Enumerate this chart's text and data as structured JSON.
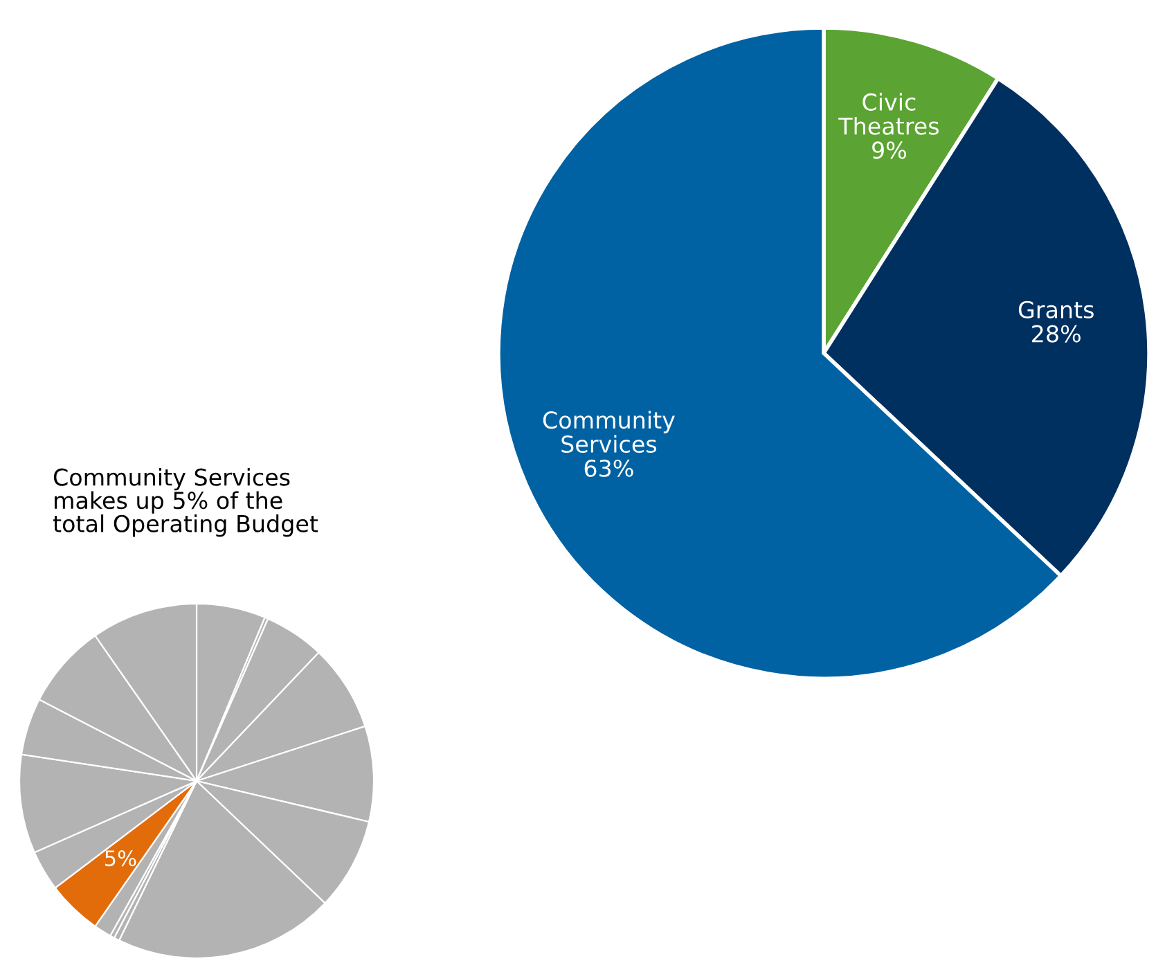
{
  "chart_data": [
    {
      "type": "pie",
      "categories": [
        "Civic\nTheatres",
        "Grants",
        "Community\nServices"
      ],
      "values": [
        9,
        28,
        63
      ],
      "value_labels": [
        "9%",
        "28%",
        "63%"
      ],
      "colors": [
        "#5ba332",
        "#003060",
        "#0062a3"
      ]
    },
    {
      "type": "pie",
      "title": "Community Services\nmakes up 5% of the\ntotal Operating Budget",
      "categories": [
        null,
        null,
        null,
        null,
        null,
        null,
        null,
        null,
        null,
        null,
        null,
        null,
        null,
        null,
        null,
        null
      ],
      "values": [
        6.3,
        0.3,
        5.5,
        7.9,
        8.7,
        8.4,
        20.1,
        0.5,
        0.4,
        1.6,
        5,
        3.7,
        9.0,
        5.2,
        7.7,
        9.7
      ],
      "value_labels": [
        null,
        null,
        null,
        null,
        null,
        null,
        null,
        null,
        null,
        null,
        "5%",
        null,
        null,
        null,
        null,
        null
      ],
      "colors": [
        "#b3b3b3",
        "#b3b3b3",
        "#b3b3b3",
        "#b3b3b3",
        "#b3b3b3",
        "#b3b3b3",
        "#b3b3b3",
        "#b3b3b3",
        "#b3b3b3",
        "#b3b3b3",
        "#e36c0a",
        "#b3b3b3",
        "#b3b3b3",
        "#b3b3b3",
        "#b3b3b3",
        "#b3b3b3"
      ]
    }
  ]
}
